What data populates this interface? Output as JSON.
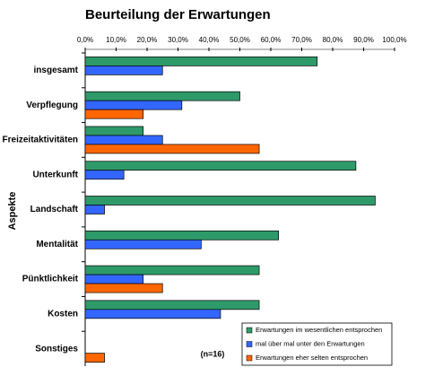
{
  "chart_data": {
    "type": "hbar",
    "title": "Beurteilung der Erwartungen",
    "y_label": "Aspekte",
    "annotation": "(n=16)",
    "categories": [
      "insgesamt",
      "Verpflegung",
      "Freizeitaktivitäten",
      "Unterkunft",
      "Landschaft",
      "Mentalität",
      "Pünktlichkeit",
      "Kosten",
      "Sonstiges"
    ],
    "series": [
      {
        "name": "Erwartungen im wesentlichen entsprochen",
        "color": "#2e9a6a",
        "values": [
          75,
          50,
          18.75,
          87.5,
          93.75,
          62.5,
          56.25,
          56.25,
          null
        ]
      },
      {
        "name": "mal über mal unter den Erwartungen",
        "color": "#3366ff",
        "values": [
          25,
          31.25,
          25,
          12.5,
          6.25,
          37.5,
          18.75,
          43.75,
          null
        ]
      },
      {
        "name": "Erwartungen eher selten entsprochen",
        "color": "#ff6600",
        "values": [
          null,
          18.75,
          56.25,
          null,
          null,
          null,
          25,
          null,
          6.25
        ]
      }
    ],
    "xlim": [
      0,
      100
    ],
    "xticks": [
      {
        "value": 0,
        "label": "0,0%"
      },
      {
        "value": 10,
        "label": "10,0%"
      },
      {
        "value": 20,
        "label": "20,0%"
      },
      {
        "value": 30,
        "label": "30,0%"
      },
      {
        "value": 40,
        "label": "40,0%"
      },
      {
        "value": 50,
        "label": "50,0%"
      },
      {
        "value": 60,
        "label": "60,0%"
      },
      {
        "value": 70,
        "label": "70,0%"
      },
      {
        "value": 80,
        "label": "80,0%"
      },
      {
        "value": 90,
        "label": "90,0%"
      },
      {
        "value": 100,
        "label": "100,0%"
      }
    ],
    "legend": "lower right"
  }
}
